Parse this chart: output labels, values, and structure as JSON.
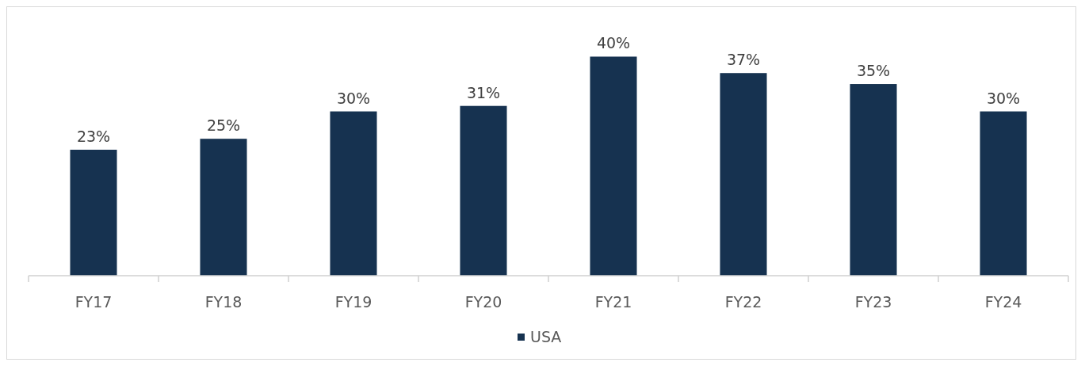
{
  "chart_data": {
    "type": "bar",
    "categories": [
      "FY17",
      "FY18",
      "FY19",
      "FY20",
      "FY21",
      "FY22",
      "FY23",
      "FY24"
    ],
    "series": [
      {
        "name": "USA",
        "color": "#163250",
        "values": [
          23,
          25,
          30,
          31,
          40,
          37,
          35,
          30
        ],
        "value_labels": [
          "23%",
          "25%",
          "30%",
          "31%",
          "40%",
          "37%",
          "35%",
          "30%"
        ]
      }
    ],
    "legend": "bottom"
  }
}
